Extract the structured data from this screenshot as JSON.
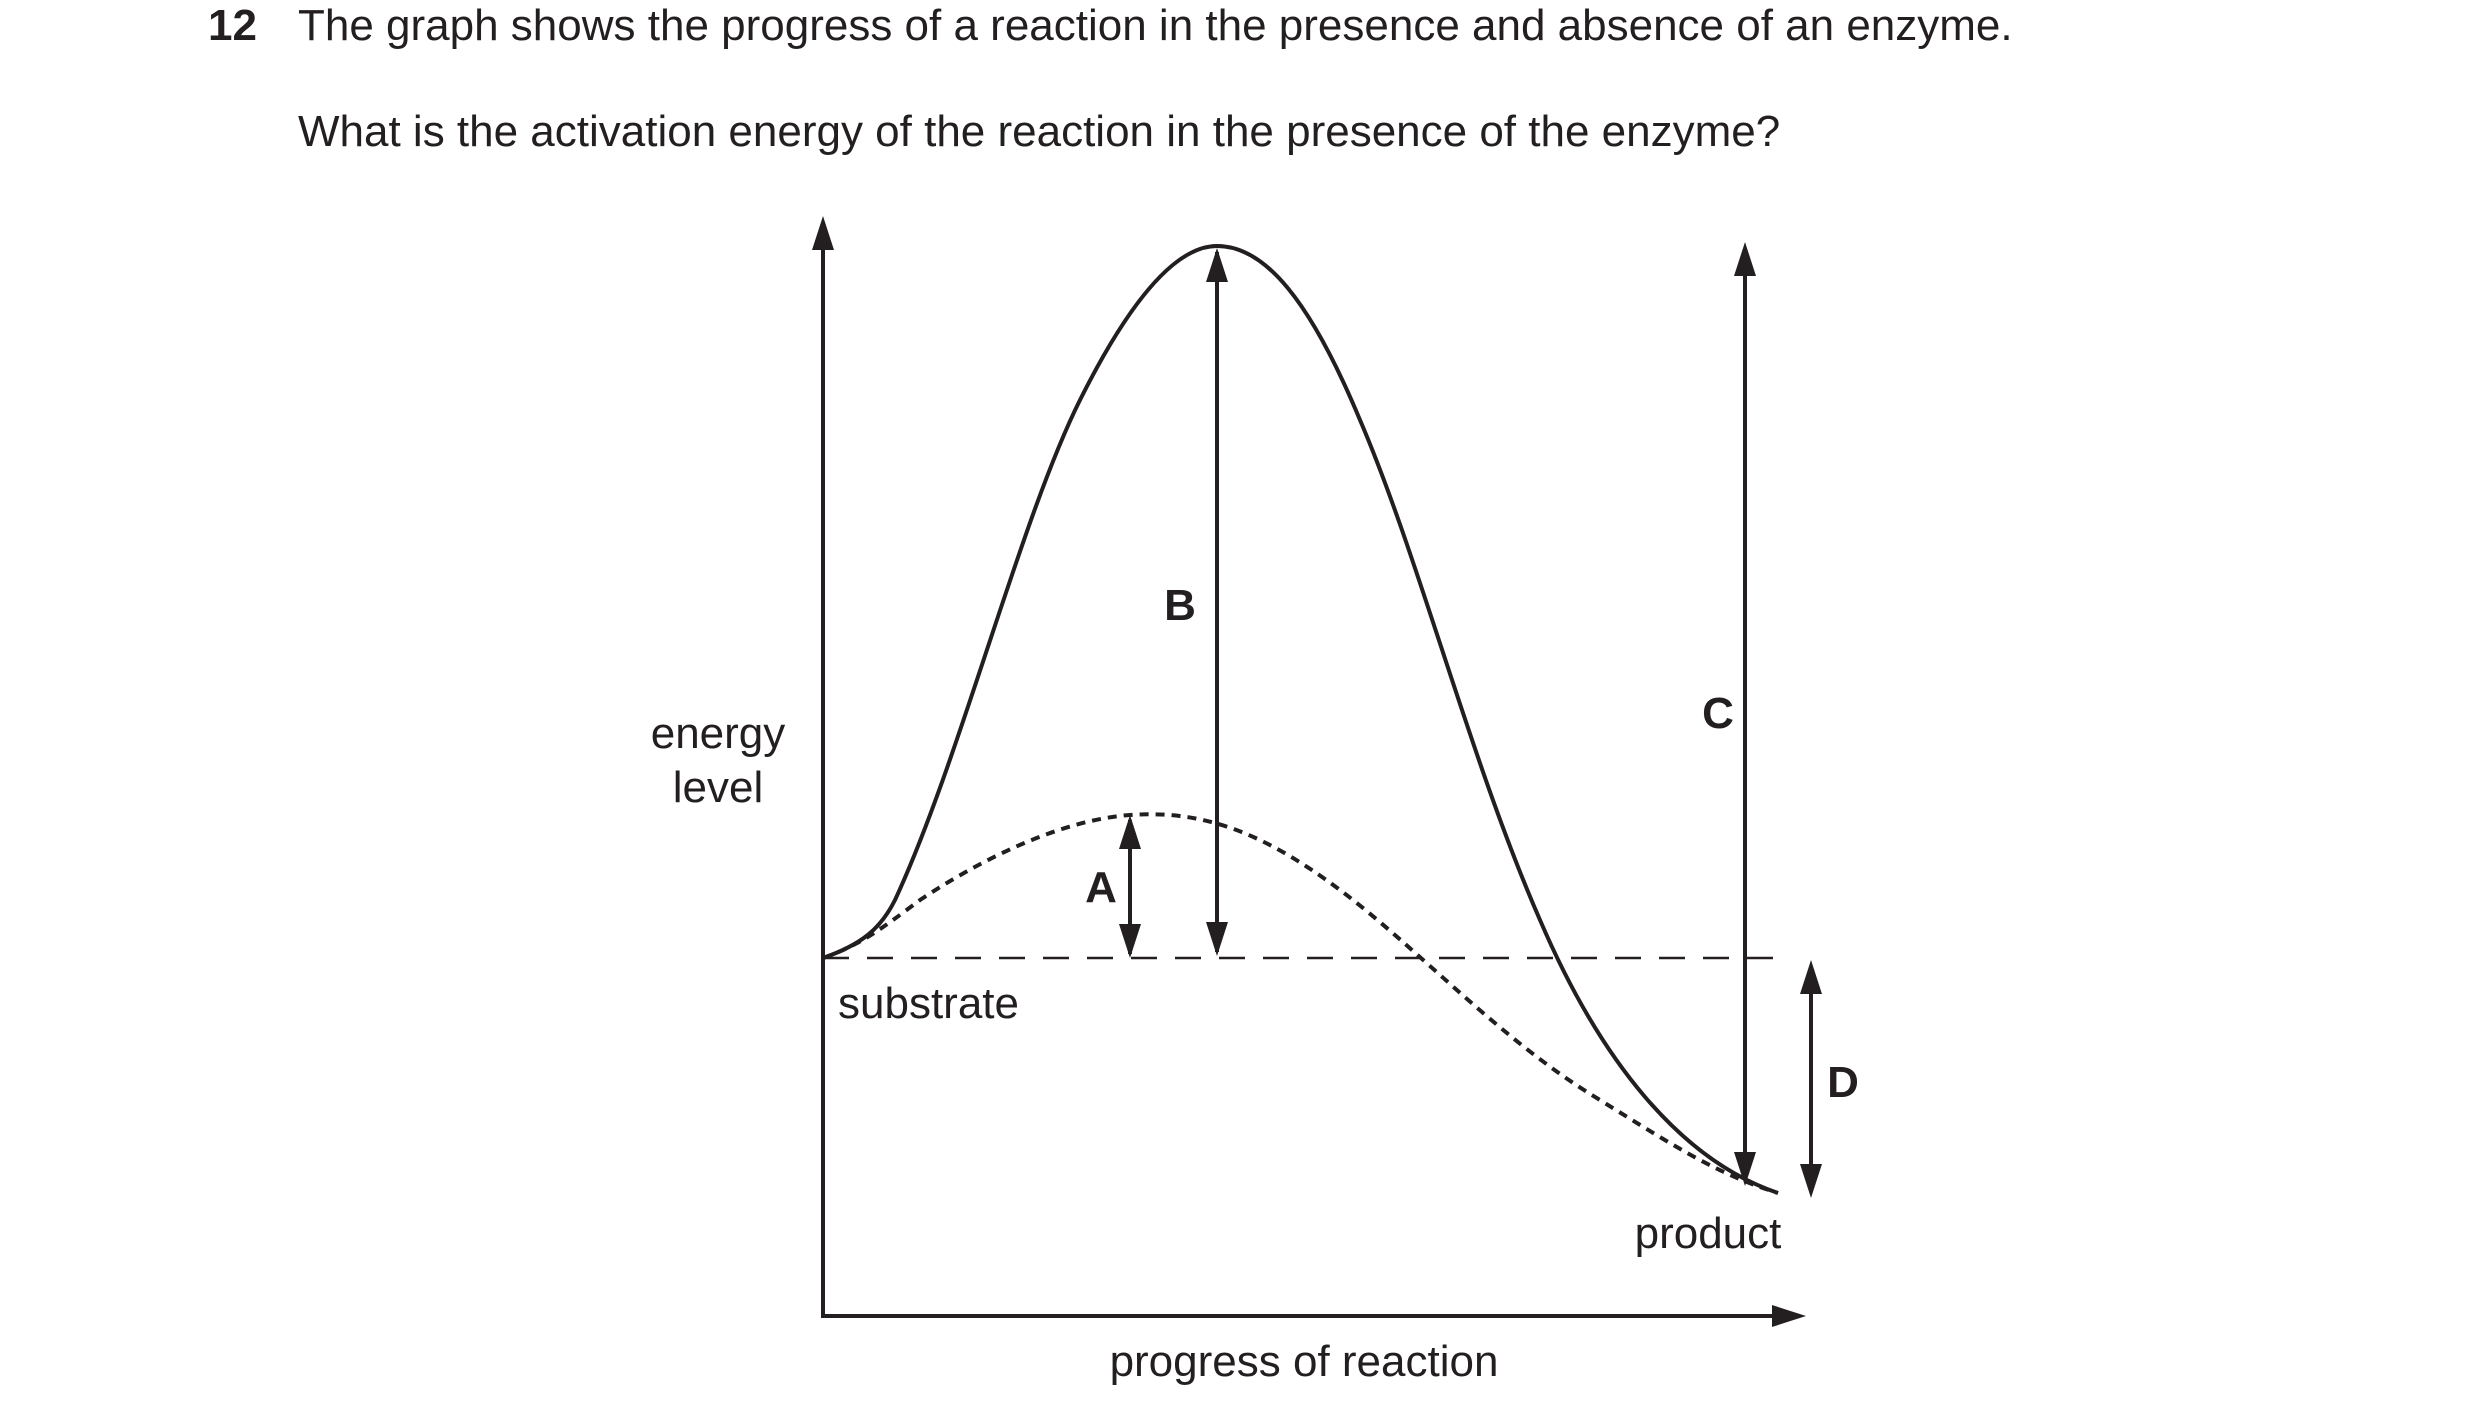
{
  "question": {
    "number": "12",
    "line1": "The graph shows the progress of a reaction in the presence and absence of an enzyme.",
    "line2": "What is the activation energy of the reaction in the presence of the enzyme?"
  },
  "diagram": {
    "y_axis_label_line1": "energy",
    "y_axis_label_line2": "level",
    "x_axis_label": "progress of reaction",
    "substrate_label": "substrate",
    "product_label": "product",
    "arrow_labels": {
      "A": "A",
      "B": "B",
      "C": "C",
      "D": "D"
    },
    "line_color": "#231f20"
  }
}
